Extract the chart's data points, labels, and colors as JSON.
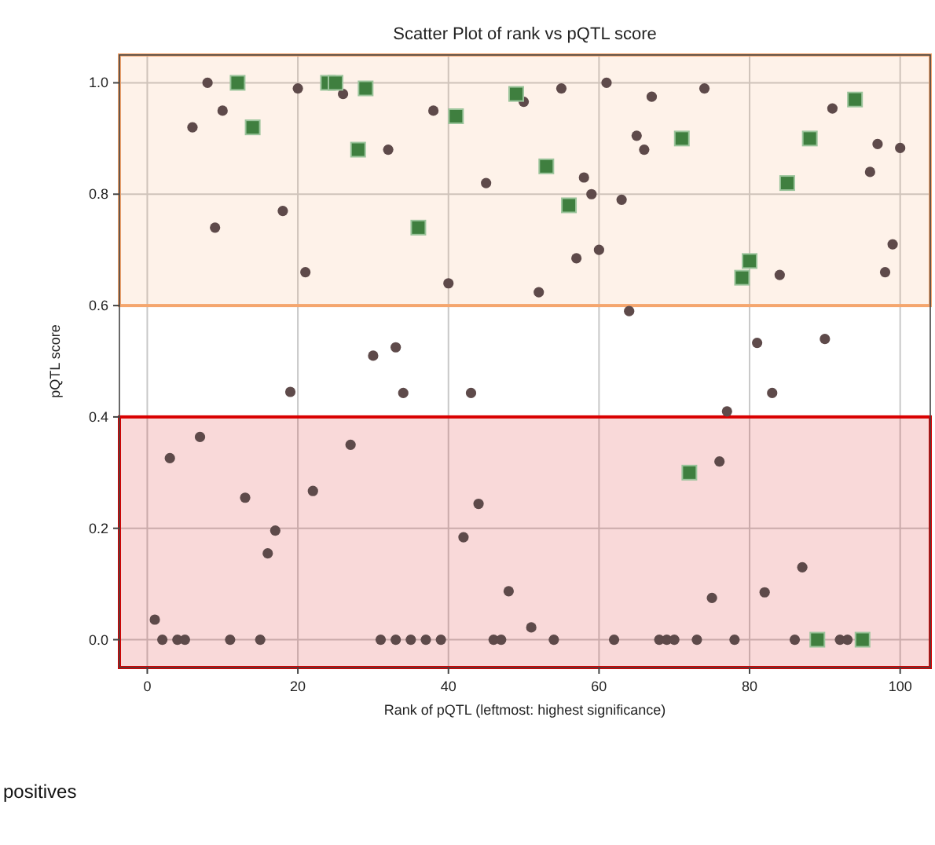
{
  "chart_data": {
    "type": "scatter",
    "title": "Scatter Plot of rank vs pQTL score",
    "xlabel": "Rank of pQTL (leftmost: highest significance)",
    "ylabel": "pQTL score",
    "xlim": [
      -3.7,
      104
    ],
    "ylim": [
      -0.05,
      1.05
    ],
    "xticks": [
      0,
      20,
      40,
      60,
      80,
      100
    ],
    "yticks": [
      {
        "value": 0,
        "label": "0.0"
      },
      {
        "value": 0.2,
        "label": "0.2"
      },
      {
        "value": 0.4,
        "label": "0.4"
      },
      {
        "value": 0.6,
        "label": "0.6"
      },
      {
        "value": 0.8,
        "label": "0.8"
      },
      {
        "value": 1,
        "label": "1.0"
      }
    ],
    "grid": true,
    "bands": [
      {
        "axis": "y",
        "from": 0.6,
        "to": 1.05,
        "color": "#f5a66e"
      },
      {
        "axis": "y",
        "from": -0.05,
        "to": 0.4,
        "color": "#d90000"
      }
    ],
    "annotations": [
      "positives"
    ],
    "series": [
      {
        "marker": "circle",
        "color": "#5e4a4a",
        "x": [
          8,
          20,
          26,
          10,
          6,
          32,
          38,
          45,
          9,
          18,
          21,
          40,
          30,
          33,
          50,
          55,
          61,
          67,
          74,
          91,
          58,
          59,
          63,
          65,
          66,
          97,
          100,
          96,
          99,
          98,
          60,
          57,
          52,
          84,
          64,
          19,
          34,
          43,
          1,
          3,
          7,
          13,
          17,
          16,
          22,
          27,
          42,
          44,
          2,
          4,
          5,
          11,
          15,
          31,
          33,
          35,
          37,
          39,
          46,
          47,
          54,
          62,
          68,
          69,
          70,
          73,
          78,
          86,
          92,
          93,
          81,
          90,
          83,
          77,
          76,
          87,
          82,
          75,
          48,
          51
        ],
        "values": [
          1.0,
          0.99,
          0.98,
          0.95,
          0.92,
          0.88,
          0.95,
          0.82,
          0.74,
          0.77,
          0.66,
          0.64,
          0.51,
          0.525,
          0.966,
          0.99,
          1.0,
          0.975,
          0.99,
          0.954,
          0.83,
          0.8,
          0.79,
          0.905,
          0.88,
          0.89,
          0.883,
          0.84,
          0.71,
          0.66,
          0.7,
          0.685,
          0.624,
          0.655,
          0.59,
          0.445,
          0.443,
          0.443,
          0.036,
          0.326,
          0.364,
          0.255,
          0.196,
          0.155,
          0.267,
          0.35,
          0.184,
          0.244,
          0,
          0,
          0,
          0,
          0,
          0,
          0,
          0,
          0,
          0,
          0,
          0,
          0,
          0,
          0,
          0,
          0,
          0,
          0,
          0,
          0,
          0,
          0.533,
          0.54,
          0.443,
          0.41,
          0.32,
          0.13,
          0.085,
          0.075,
          0.087,
          0.022
        ]
      },
      {
        "marker": "square",
        "color": "#3f7f3f",
        "x": [
          12,
          24,
          25,
          29,
          14,
          28,
          41,
          36,
          49,
          53,
          56,
          71,
          88,
          94,
          85,
          80,
          79,
          72,
          89,
          95
        ],
        "values": [
          1.0,
          1.0,
          1.0,
          0.99,
          0.92,
          0.88,
          0.94,
          0.74,
          0.98,
          0.85,
          0.78,
          0.9,
          0.9,
          0.97,
          0.82,
          0.68,
          0.65,
          0.3,
          0,
          0
        ]
      }
    ]
  }
}
